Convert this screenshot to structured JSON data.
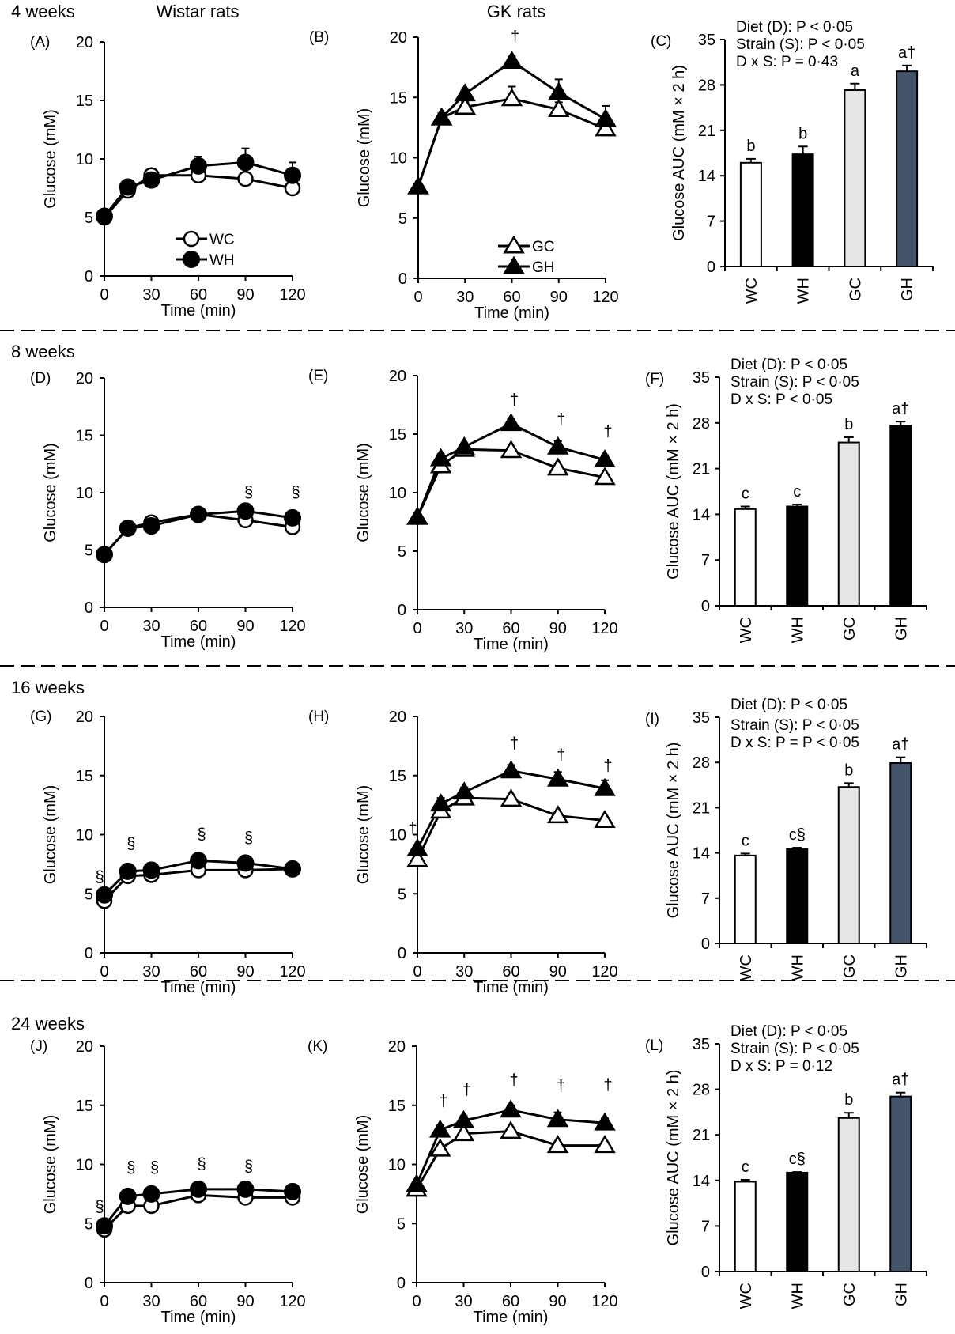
{
  "chart_data": {
    "type": "line+bar",
    "column_headers": [
      "Wistar rats",
      "GK rats"
    ],
    "colors": {
      "WC": "#ffffff",
      "WH": "#000000",
      "GC": "#e6e6e6",
      "GH": "#44546a",
      "GH_8wk": "#000000"
    },
    "line_x": [
      0,
      15,
      30,
      60,
      90,
      120
    ],
    "line_xticks": [
      "0",
      "30",
      "60",
      "90",
      "120"
    ],
    "line_yticks": [
      "0",
      "5",
      "10",
      "15",
      "20"
    ],
    "line_ylim": [
      0,
      20
    ],
    "line_xlim": [
      0,
      120
    ],
    "line_xlabel": "Time (min)",
    "line_ylabel": "Glucose (mM)",
    "bar_categories": [
      "WC",
      "WH",
      "GC",
      "GH"
    ],
    "bar_yticks": [
      "0",
      "7",
      "14",
      "21",
      "28",
      "35"
    ],
    "bar_ylim": [
      0,
      35
    ],
    "bar_ylabel": "Glucose AUC (mM × 2 h)",
    "legends": {
      "wistar": [
        {
          "name": "WC",
          "marker": "open-circle"
        },
        {
          "name": "WH",
          "marker": "filled-circle"
        }
      ],
      "gk": [
        {
          "name": "GC",
          "marker": "open-triangle"
        },
        {
          "name": "GH",
          "marker": "filled-triangle"
        }
      ]
    },
    "rows": [
      {
        "label": "4 weeks",
        "wistar": {
          "panel": "(A)",
          "series": [
            {
              "name": "WC",
              "values": [
                5.0,
                7.3,
                8.6,
                8.6,
                8.3,
                7.5
              ],
              "err": [
                0.2,
                0.3,
                0.3,
                0.3,
                0.3,
                0.3
              ]
            },
            {
              "name": "WH",
              "values": [
                5.1,
                7.6,
                8.2,
                9.4,
                9.7,
                8.6
              ],
              "err": [
                0.2,
                0.3,
                0.3,
                0.8,
                1.2,
                1.1
              ]
            }
          ],
          "marks": []
        },
        "gk": {
          "panel": "(B)",
          "series": [
            {
              "name": "GC",
              "values": [
                7.6,
                13.3,
                14.2,
                14.9,
                14.0,
                12.4
              ],
              "err": [
                0.3,
                0.4,
                0.4,
                1.0,
                0.6,
                0.7
              ]
            },
            {
              "name": "GH",
              "values": [
                7.6,
                13.3,
                15.3,
                18.0,
                15.4,
                13.2
              ],
              "err": [
                0.3,
                0.4,
                0.4,
                0.4,
                1.1,
                1.1
              ]
            }
          ],
          "marks": [
            {
              "x": 60,
              "y": 19.6,
              "text": "†"
            }
          ]
        },
        "bar": {
          "panel": "(C)",
          "stats": [
            "Diet (D): P < 0·05",
            "Strain (S): P < 0·05",
            "D x S: P = 0·43"
          ],
          "values": [
            16.0,
            17.3,
            27.2,
            30.1
          ],
          "err": [
            0.6,
            1.2,
            1.0,
            0.9
          ],
          "letters": [
            "b",
            "b",
            "a",
            "a†"
          ],
          "gh_color": "#44546a"
        }
      },
      {
        "label": "8 weeks",
        "wistar": {
          "panel": "(D)",
          "series": [
            {
              "name": "WC",
              "values": [
                4.6,
                6.9,
                7.4,
                8.1,
                7.6,
                7.0
              ],
              "err": [
                0.2,
                0.2,
                0.3,
                0.3,
                0.3,
                0.3
              ]
            },
            {
              "name": "WH",
              "values": [
                4.6,
                6.9,
                7.1,
                8.1,
                8.4,
                7.8
              ],
              "err": [
                0.2,
                0.2,
                0.3,
                0.3,
                0.3,
                0.3
              ]
            }
          ],
          "marks": [
            {
              "x": 90,
              "y": 9.6,
              "text": "§"
            },
            {
              "x": 120,
              "y": 9.6,
              "text": "§"
            }
          ]
        },
        "gk": {
          "panel": "(E)",
          "series": [
            {
              "name": "GC",
              "values": [
                7.9,
                12.3,
                13.7,
                13.6,
                12.1,
                11.3
              ],
              "err": [
                0.3,
                0.4,
                0.3,
                0.3,
                0.3,
                0.3
              ]
            },
            {
              "name": "GH",
              "values": [
                7.9,
                12.9,
                13.9,
                15.9,
                13.9,
                12.8
              ],
              "err": [
                0.3,
                0.4,
                0.3,
                0.4,
                0.5,
                0.4
              ]
            }
          ],
          "marks": [
            {
              "x": 60,
              "y": 17.5,
              "text": "†"
            },
            {
              "x": 90,
              "y": 15.8,
              "text": "†"
            },
            {
              "x": 120,
              "y": 14.8,
              "text": "†"
            }
          ]
        },
        "bar": {
          "panel": "(F)",
          "stats": [
            "Diet (D): P < 0·05",
            "Strain (S): P < 0·05",
            "D x S: P < 0·05"
          ],
          "values": [
            14.8,
            15.2,
            25.0,
            27.6
          ],
          "err": [
            0.4,
            0.3,
            0.8,
            0.6
          ],
          "letters": [
            "c",
            "c",
            "b",
            "a†"
          ],
          "gh_color": "#000000"
        }
      },
      {
        "label": "16 weeks",
        "wistar": {
          "panel": "(G)",
          "series": [
            {
              "name": "WC",
              "values": [
                4.4,
                6.5,
                6.6,
                7.0,
                7.0,
                7.1
              ],
              "err": [
                0.2,
                0.2,
                0.2,
                0.2,
                0.2,
                0.2
              ]
            },
            {
              "name": "WH",
              "values": [
                4.9,
                6.9,
                7.0,
                7.8,
                7.6,
                7.1
              ],
              "err": [
                0.2,
                0.2,
                0.2,
                0.2,
                0.2,
                0.2
              ]
            }
          ],
          "marks": [
            {
              "x": 0,
              "y": 6.0,
              "text": "§"
            },
            {
              "x": 15,
              "y": 8.8,
              "text": "§"
            },
            {
              "x": 60,
              "y": 9.6,
              "text": "§"
            },
            {
              "x": 90,
              "y": 9.3,
              "text": "§"
            }
          ]
        },
        "gk": {
          "panel": "(H)",
          "series": [
            {
              "name": "GC",
              "values": [
                7.9,
                12.0,
                13.1,
                13.0,
                11.6,
                11.2
              ],
              "err": [
                0.3,
                0.4,
                0.3,
                0.3,
                0.3,
                0.3
              ]
            },
            {
              "name": "GH",
              "values": [
                8.8,
                12.6,
                13.6,
                15.4,
                14.7,
                13.9
              ],
              "err": [
                0.3,
                0.5,
                0.4,
                0.5,
                0.6,
                0.7
              ]
            }
          ],
          "marks": [
            {
              "x": 0,
              "y": 10.1,
              "text": "†"
            },
            {
              "x": 60,
              "y": 17.3,
              "text": "†"
            },
            {
              "x": 90,
              "y": 16.3,
              "text": "†"
            },
            {
              "x": 120,
              "y": 15.4,
              "text": "†"
            }
          ]
        },
        "bar": {
          "panel": "(I)",
          "stats": [
            "Diet (D): P < 0·05",
            "Strain (S): P < 0·05",
            "D x S: P = P < 0·05"
          ],
          "values": [
            13.6,
            14.6,
            24.2,
            27.9
          ],
          "err": [
            0.3,
            0.2,
            0.6,
            0.9
          ],
          "letters": [
            "c",
            "c§",
            "b",
            "a†"
          ],
          "gh_color": "#44546a"
        }
      },
      {
        "label": "24 weeks",
        "wistar": {
          "panel": "(J)",
          "series": [
            {
              "name": "WC",
              "values": [
                4.5,
                6.5,
                6.5,
                7.4,
                7.2,
                7.2
              ],
              "err": [
                0.2,
                0.2,
                0.2,
                0.2,
                0.2,
                0.2
              ]
            },
            {
              "name": "WH",
              "values": [
                4.8,
                7.3,
                7.5,
                7.9,
                7.9,
                7.7
              ],
              "err": [
                0.2,
                0.2,
                0.2,
                0.2,
                0.2,
                0.2
              ]
            }
          ],
          "marks": [
            {
              "x": 0,
              "y": 6.0,
              "text": "§"
            },
            {
              "x": 15,
              "y": 9.3,
              "text": "§"
            },
            {
              "x": 30,
              "y": 9.3,
              "text": "§"
            },
            {
              "x": 60,
              "y": 9.6,
              "text": "§"
            },
            {
              "x": 90,
              "y": 9.4,
              "text": "§"
            }
          ]
        },
        "gk": {
          "panel": "(K)",
          "series": [
            {
              "name": "GC",
              "values": [
                7.9,
                11.3,
                12.6,
                12.8,
                11.6,
                11.6
              ],
              "err": [
                0.3,
                0.3,
                0.3,
                0.3,
                0.3,
                0.3
              ]
            },
            {
              "name": "GH",
              "values": [
                8.3,
                12.9,
                13.7,
                14.6,
                13.8,
                13.5
              ],
              "err": [
                0.3,
                0.4,
                0.4,
                0.4,
                0.6,
                0.4
              ]
            }
          ],
          "marks": [
            {
              "x": 15,
              "y": 14.9,
              "text": "†"
            },
            {
              "x": 30,
              "y": 15.9,
              "text": "†"
            },
            {
              "x": 60,
              "y": 16.7,
              "text": "†"
            },
            {
              "x": 90,
              "y": 16.2,
              "text": "†"
            },
            {
              "x": 120,
              "y": 16.3,
              "text": "†"
            }
          ]
        },
        "bar": {
          "panel": "(L)",
          "stats": [
            "Diet (D): P < 0·05",
            "Strain (S): P < 0·05",
            "D x S: P = 0·12"
          ],
          "values": [
            13.8,
            15.2,
            23.6,
            26.9
          ],
          "err": [
            0.3,
            0.1,
            0.8,
            0.6
          ],
          "letters": [
            "c",
            "c§",
            "b",
            "a†"
          ],
          "gh_color": "#44546a"
        }
      }
    ]
  }
}
